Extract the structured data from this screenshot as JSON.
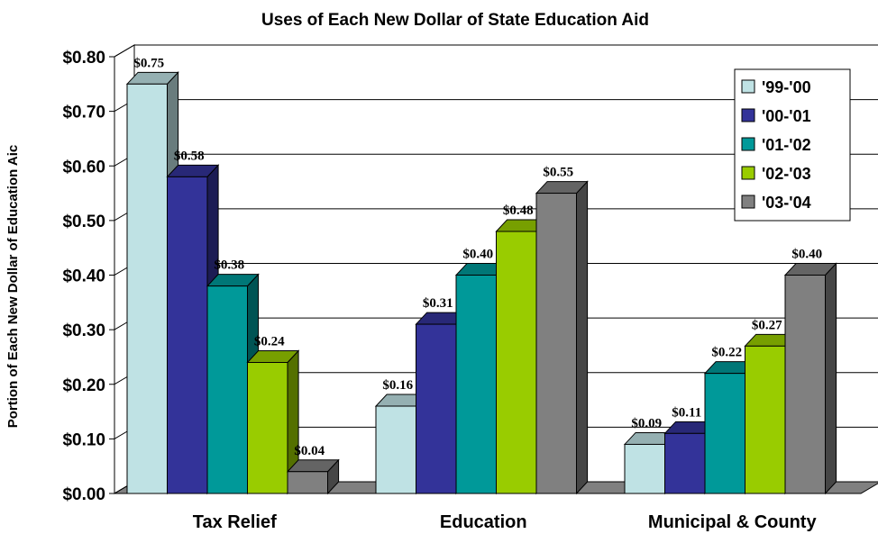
{
  "chart_data": {
    "type": "bar",
    "title": "Uses of Each New Dollar of State Education Aid",
    "xlabel": "",
    "ylabel": "Portion of Each New Dollar of Education Aic",
    "ylim": [
      0,
      0.8
    ],
    "yticks": [
      "$0.00",
      "$0.10",
      "$0.20",
      "$0.30",
      "$0.40",
      "$0.50",
      "$0.60",
      "$0.70",
      "$0.80"
    ],
    "grid": true,
    "legend_position": "top-right",
    "categories": [
      "Tax Relief",
      "Education",
      "Municipal & County"
    ],
    "series": [
      {
        "name": "'99-'00",
        "color": "#bfe2e4",
        "values": [
          0.75,
          0.16,
          0.09
        ],
        "labels": [
          "$0.75",
          "$0.16",
          "$0.09"
        ]
      },
      {
        "name": "'00-'01",
        "color": "#333399",
        "values": [
          0.58,
          0.31,
          0.11
        ],
        "labels": [
          "$0.58",
          "$0.31",
          "$0.11"
        ]
      },
      {
        "name": "'01-'02",
        "color": "#009999",
        "values": [
          0.38,
          0.4,
          0.22
        ],
        "labels": [
          "$0.38",
          "$0.40",
          "$0.22"
        ]
      },
      {
        "name": "'02-'03",
        "color": "#99cc00",
        "values": [
          0.24,
          0.48,
          0.27
        ],
        "labels": [
          "$0.24",
          "$0.48",
          "$0.27"
        ]
      },
      {
        "name": "'03-'04",
        "color": "#808080",
        "values": [
          0.04,
          0.55,
          0.4
        ],
        "labels": [
          "$0.04",
          "$0.55",
          "$0.40"
        ]
      }
    ]
  }
}
